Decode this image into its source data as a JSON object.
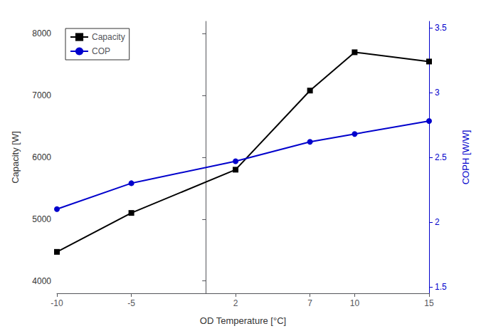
{
  "chart_data": {
    "type": "line",
    "xlabel": "OD Temperature [°C]",
    "ylabel": "Capacity [W]",
    "y2label": "COPH [W/W]",
    "x": [
      -10,
      -5,
      2,
      7,
      10,
      15
    ],
    "series": [
      {
        "name": "Capacity",
        "color": "#000000",
        "marker": "square",
        "values": [
          4470,
          5100,
          5800,
          7080,
          7700,
          7550
        ]
      },
      {
        "name": "COP",
        "color": "#0000CC",
        "marker": "circle",
        "axis": "y2",
        "values": [
          2.1,
          2.3,
          2.47,
          2.62,
          2.68,
          2.78
        ]
      }
    ],
    "xlim": [
      -10,
      15
    ],
    "xticks": [
      -10,
      -5,
      2,
      7,
      10,
      15
    ],
    "ylim": [
      3800,
      8200
    ],
    "yticks": [
      4000,
      5000,
      6000,
      7000,
      8000
    ],
    "y2lim": [
      1.45,
      3.55
    ],
    "y2ticks": [
      1.5,
      2.0,
      2.5,
      3.0,
      3.5
    ],
    "grid": false,
    "legend": "upper left"
  }
}
